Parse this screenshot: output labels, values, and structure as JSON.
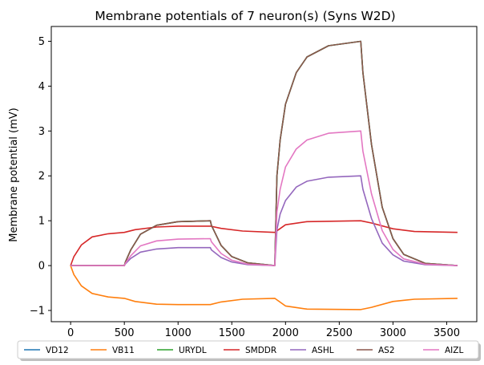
{
  "chart_data": {
    "type": "line",
    "title": "Membrane potentials of 7 neuron(s) (Syns W2D)",
    "xlabel": "",
    "ylabel": "Membrane potential (mV)",
    "xlim": [
      -180,
      3780
    ],
    "ylim": [
      -1.25,
      5.33
    ],
    "xticks": [
      0,
      500,
      1000,
      1500,
      2000,
      2500,
      3000,
      3500
    ],
    "yticks": [
      -1,
      0,
      1,
      2,
      3,
      4,
      5
    ],
    "ytick_labels": [
      "−1",
      "0",
      "1",
      "2",
      "3",
      "4",
      "5"
    ],
    "grid": false,
    "legend_position": "bottom-outside",
    "series": [
      {
        "name": "VD12",
        "color": "#1f77b4",
        "points": [
          [
            0,
            0
          ],
          [
            500,
            0
          ],
          [
            510,
            0.08
          ],
          [
            560,
            0.35
          ],
          [
            650,
            0.7
          ],
          [
            800,
            0.9
          ],
          [
            1000,
            0.98
          ],
          [
            1300,
            1.0
          ],
          [
            1310,
            0.9
          ],
          [
            1400,
            0.45
          ],
          [
            1500,
            0.2
          ],
          [
            1650,
            0.06
          ],
          [
            1900,
            0.0
          ],
          [
            1920,
            2.0
          ],
          [
            1950,
            2.8
          ],
          [
            2000,
            3.6
          ],
          [
            2100,
            4.3
          ],
          [
            2200,
            4.65
          ],
          [
            2400,
            4.9
          ],
          [
            2700,
            5.0
          ],
          [
            2720,
            4.3
          ],
          [
            2800,
            2.7
          ],
          [
            2900,
            1.3
          ],
          [
            3000,
            0.6
          ],
          [
            3100,
            0.25
          ],
          [
            3300,
            0.05
          ],
          [
            3600,
            0.0
          ]
        ]
      },
      {
        "name": "VB11",
        "color": "#ff7f0e",
        "points": [
          [
            0,
            0
          ],
          [
            30,
            -0.2
          ],
          [
            100,
            -0.45
          ],
          [
            200,
            -0.62
          ],
          [
            350,
            -0.7
          ],
          [
            500,
            -0.73
          ],
          [
            600,
            -0.8
          ],
          [
            800,
            -0.86
          ],
          [
            1000,
            -0.87
          ],
          [
            1300,
            -0.87
          ],
          [
            1400,
            -0.81
          ],
          [
            1600,
            -0.75
          ],
          [
            1900,
            -0.73
          ],
          [
            2000,
            -0.9
          ],
          [
            2200,
            -0.97
          ],
          [
            2700,
            -0.98
          ],
          [
            2800,
            -0.93
          ],
          [
            3000,
            -0.8
          ],
          [
            3200,
            -0.75
          ],
          [
            3600,
            -0.73
          ]
        ]
      },
      {
        "name": "URYDL",
        "color": "#2ca02c",
        "points": [
          [
            0,
            0
          ],
          [
            500,
            0
          ],
          [
            510,
            0.08
          ],
          [
            560,
            0.35
          ],
          [
            650,
            0.7
          ],
          [
            800,
            0.9
          ],
          [
            1000,
            0.98
          ],
          [
            1300,
            1.0
          ],
          [
            1310,
            0.9
          ],
          [
            1400,
            0.45
          ],
          [
            1500,
            0.2
          ],
          [
            1650,
            0.06
          ],
          [
            1900,
            0.0
          ],
          [
            1920,
            2.0
          ],
          [
            1950,
            2.8
          ],
          [
            2000,
            3.6
          ],
          [
            2100,
            4.3
          ],
          [
            2200,
            4.65
          ],
          [
            2400,
            4.9
          ],
          [
            2700,
            5.0
          ],
          [
            2720,
            4.3
          ],
          [
            2800,
            2.7
          ],
          [
            2900,
            1.3
          ],
          [
            3000,
            0.6
          ],
          [
            3100,
            0.25
          ],
          [
            3300,
            0.05
          ],
          [
            3600,
            0.0
          ]
        ]
      },
      {
        "name": "SMDDR",
        "color": "#d62728",
        "points": [
          [
            0,
            0
          ],
          [
            30,
            0.2
          ],
          [
            100,
            0.46
          ],
          [
            200,
            0.64
          ],
          [
            350,
            0.71
          ],
          [
            500,
            0.74
          ],
          [
            600,
            0.8
          ],
          [
            800,
            0.86
          ],
          [
            1000,
            0.88
          ],
          [
            1300,
            0.88
          ],
          [
            1400,
            0.83
          ],
          [
            1600,
            0.77
          ],
          [
            1900,
            0.74
          ],
          [
            2000,
            0.91
          ],
          [
            2200,
            0.98
          ],
          [
            2700,
            1.0
          ],
          [
            2800,
            0.95
          ],
          [
            3000,
            0.82
          ],
          [
            3200,
            0.76
          ],
          [
            3600,
            0.74
          ]
        ]
      },
      {
        "name": "ASHL",
        "color": "#9467bd",
        "points": [
          [
            0,
            0
          ],
          [
            500,
            0
          ],
          [
            510,
            0.04
          ],
          [
            560,
            0.16
          ],
          [
            650,
            0.3
          ],
          [
            800,
            0.37
          ],
          [
            1000,
            0.4
          ],
          [
            1300,
            0.4
          ],
          [
            1310,
            0.35
          ],
          [
            1400,
            0.18
          ],
          [
            1500,
            0.08
          ],
          [
            1650,
            0.02
          ],
          [
            1900,
            0.0
          ],
          [
            1920,
            0.8
          ],
          [
            1950,
            1.15
          ],
          [
            2000,
            1.45
          ],
          [
            2100,
            1.75
          ],
          [
            2200,
            1.88
          ],
          [
            2400,
            1.97
          ],
          [
            2700,
            2.0
          ],
          [
            2720,
            1.7
          ],
          [
            2800,
            1.05
          ],
          [
            2900,
            0.5
          ],
          [
            3000,
            0.24
          ],
          [
            3100,
            0.1
          ],
          [
            3300,
            0.02
          ],
          [
            3600,
            0.0
          ]
        ]
      },
      {
        "name": "AS2",
        "color": "#8c564b",
        "points": [
          [
            0,
            0
          ],
          [
            500,
            0
          ],
          [
            510,
            0.08
          ],
          [
            560,
            0.35
          ],
          [
            650,
            0.7
          ],
          [
            800,
            0.9
          ],
          [
            1000,
            0.98
          ],
          [
            1300,
            1.0
          ],
          [
            1310,
            0.9
          ],
          [
            1400,
            0.45
          ],
          [
            1500,
            0.2
          ],
          [
            1650,
            0.06
          ],
          [
            1900,
            0.0
          ],
          [
            1920,
            2.0
          ],
          [
            1950,
            2.8
          ],
          [
            2000,
            3.6
          ],
          [
            2100,
            4.3
          ],
          [
            2200,
            4.65
          ],
          [
            2400,
            4.9
          ],
          [
            2700,
            5.0
          ],
          [
            2720,
            4.3
          ],
          [
            2800,
            2.7
          ],
          [
            2900,
            1.3
          ],
          [
            3000,
            0.6
          ],
          [
            3100,
            0.25
          ],
          [
            3300,
            0.05
          ],
          [
            3600,
            0.0
          ]
        ]
      },
      {
        "name": "AIZL",
        "color": "#e377c2",
        "points": [
          [
            0,
            0
          ],
          [
            500,
            0
          ],
          [
            510,
            0.05
          ],
          [
            560,
            0.22
          ],
          [
            650,
            0.44
          ],
          [
            800,
            0.55
          ],
          [
            1000,
            0.59
          ],
          [
            1300,
            0.6
          ],
          [
            1310,
            0.53
          ],
          [
            1400,
            0.27
          ],
          [
            1500,
            0.12
          ],
          [
            1650,
            0.03
          ],
          [
            1900,
            0.0
          ],
          [
            1920,
            1.2
          ],
          [
            1950,
            1.7
          ],
          [
            2000,
            2.2
          ],
          [
            2100,
            2.6
          ],
          [
            2200,
            2.8
          ],
          [
            2400,
            2.95
          ],
          [
            2700,
            3.0
          ],
          [
            2720,
            2.55
          ],
          [
            2800,
            1.6
          ],
          [
            2900,
            0.78
          ],
          [
            3000,
            0.36
          ],
          [
            3100,
            0.15
          ],
          [
            3300,
            0.03
          ],
          [
            3600,
            0.0
          ]
        ]
      }
    ]
  }
}
